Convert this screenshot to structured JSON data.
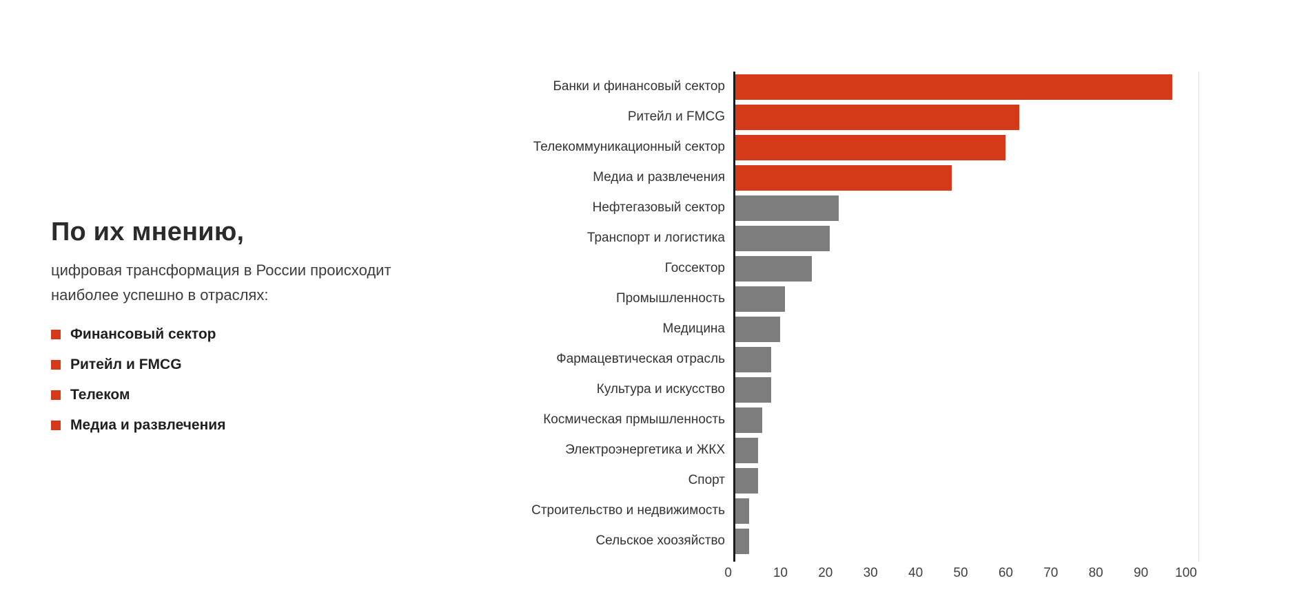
{
  "page": {
    "background": "#ffffff"
  },
  "intro": {
    "title": "По их мнению,",
    "subtitle_line1": "цифровая трансформация в России происходит",
    "subtitle_line2": "наиболее успешно в отраслях:",
    "bullets": [
      {
        "label": "Финансовый сектор"
      },
      {
        "label": "Ритейл и FMCG"
      },
      {
        "label": "Телеком"
      },
      {
        "label": "Медиа и развлечения"
      }
    ],
    "bullet_color": "#d43a1a"
  },
  "chart_data": {
    "type": "bar",
    "orientation": "horizontal",
    "title": "",
    "xlabel": "",
    "ylabel": "",
    "categories": [
      "Банки и финансовый сектор",
      "Ритейл и FMCG",
      "Телекоммуникационный сектор",
      "Медиа и развлечения",
      "Нефтегазовый сектор",
      "Транспорт и логистика",
      "Госсектор",
      "Промышленность",
      "Медицина",
      "Фармацевтическая отрасль",
      "Культура и искусство",
      "Космическая прмышленность",
      "Электроэнергетика и ЖКХ",
      "Спорт",
      "Строительство и недвижимость",
      "Сельское хоозяйство"
    ],
    "values": [
      97,
      63,
      60,
      48,
      23,
      21,
      17,
      11,
      10,
      8,
      8,
      6,
      5,
      5,
      3,
      3
    ],
    "highlight_count": 4,
    "colors": {
      "highlight": "#d43a1a",
      "default": "#7d7d7d"
    },
    "xlim": [
      0,
      100
    ],
    "xticks": [
      0,
      10,
      20,
      30,
      40,
      50,
      60,
      70,
      80,
      90,
      100
    ],
    "grid": false,
    "legend_position": "none"
  }
}
